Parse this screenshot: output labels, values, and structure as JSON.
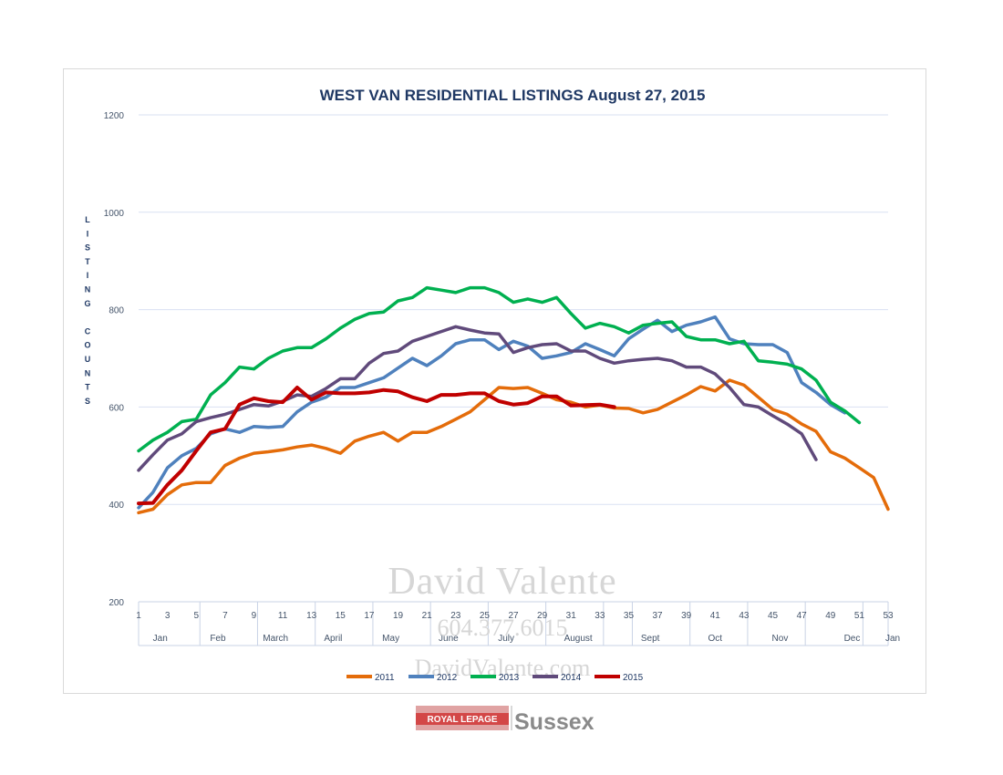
{
  "chart_data": {
    "type": "line",
    "title": "WEST VAN RESIDENTIAL LISTINGS August 27, 2015",
    "ylabel": "LISTING COUNTS",
    "ylim": [
      200,
      1200
    ],
    "yticks": [
      200,
      400,
      600,
      800,
      1000,
      1200
    ],
    "xlim": [
      1,
      53
    ],
    "xticks": [
      1,
      3,
      5,
      7,
      9,
      11,
      13,
      15,
      17,
      19,
      21,
      23,
      25,
      27,
      29,
      31,
      33,
      35,
      37,
      39,
      41,
      43,
      45,
      47,
      49,
      51,
      53
    ],
    "month_labels": [
      {
        "label": "Jan",
        "x": 2.5
      },
      {
        "label": "Feb",
        "x": 6.5
      },
      {
        "label": "March",
        "x": 10.5
      },
      {
        "label": "April",
        "x": 14.5
      },
      {
        "label": "May",
        "x": 18.5
      },
      {
        "label": "June",
        "x": 22.5
      },
      {
        "label": "July",
        "x": 26.5
      },
      {
        "label": "August",
        "x": 31.5
      },
      {
        "label": "Sept",
        "x": 36.5
      },
      {
        "label": "Oct",
        "x": 41
      },
      {
        "label": "Nov",
        "x": 45.5
      },
      {
        "label": "Dec",
        "x": 50.5
      },
      {
        "label": "Jan",
        "x": 53
      }
    ],
    "month_dividers": [
      5,
      9,
      13,
      17,
      21,
      25,
      29,
      33,
      35,
      39,
      43,
      47,
      51
    ],
    "grid": true,
    "legend": "bottom",
    "series": [
      {
        "name": "2011",
        "color": "#e46c0a",
        "values": [
          383,
          390,
          420,
          440,
          445,
          445,
          480,
          495,
          505,
          508,
          512,
          518,
          522,
          515,
          505,
          530,
          540,
          548,
          530,
          548,
          548,
          560,
          575,
          590,
          615,
          640,
          638,
          640,
          628,
          615,
          610,
          600,
          604,
          598,
          597,
          588,
          595,
          610,
          625,
          642,
          633,
          655,
          645,
          620,
          595,
          585,
          565,
          550,
          508,
          495,
          475,
          455,
          390
        ]
      },
      {
        "name": "2012",
        "color": "#4f81bd",
        "values": [
          393,
          425,
          475,
          500,
          515,
          545,
          555,
          548,
          560,
          558,
          560,
          590,
          610,
          620,
          640,
          640,
          650,
          660,
          680,
          700,
          685,
          705,
          730,
          738,
          738,
          718,
          735,
          725,
          700,
          705,
          712,
          730,
          718,
          705,
          740,
          760,
          778,
          755,
          768,
          775,
          785,
          740,
          730,
          728,
          728,
          712,
          650,
          630,
          605,
          588,
          null,
          null,
          null
        ]
      },
      {
        "name": "2013",
        "color": "#00b050",
        "values": [
          510,
          532,
          548,
          570,
          575,
          625,
          650,
          682,
          678,
          700,
          715,
          722,
          722,
          740,
          762,
          780,
          792,
          795,
          818,
          825,
          845,
          840,
          835,
          845,
          845,
          835,
          815,
          822,
          815,
          825,
          792,
          762,
          772,
          765,
          752,
          768,
          772,
          775,
          745,
          738,
          738,
          730,
          735,
          695,
          692,
          688,
          678,
          655,
          610,
          592,
          568,
          null,
          null
        ]
      },
      {
        "name": "2014",
        "color": "#604a7b",
        "values": [
          470,
          502,
          532,
          545,
          570,
          578,
          585,
          595,
          605,
          602,
          612,
          625,
          622,
          638,
          658,
          658,
          690,
          710,
          715,
          735,
          745,
          755,
          765,
          758,
          752,
          750,
          712,
          722,
          728,
          730,
          715,
          715,
          700,
          690,
          695,
          698,
          700,
          695,
          682,
          682,
          668,
          640,
          605,
          600,
          582,
          565,
          545,
          492,
          null,
          null,
          null,
          null,
          null
        ]
      },
      {
        "name": "2015",
        "color": "#c00000",
        "values": [
          402,
          403,
          440,
          470,
          510,
          548,
          555,
          605,
          618,
          612,
          610,
          640,
          615,
          630,
          628,
          628,
          630,
          635,
          632,
          620,
          612,
          625,
          625,
          628,
          628,
          612,
          605,
          608,
          622,
          622,
          603,
          604,
          605,
          600,
          null,
          null,
          null,
          null,
          null,
          null,
          null,
          null,
          null,
          null,
          null,
          null,
          null,
          null,
          null,
          null,
          null,
          null,
          null
        ]
      }
    ]
  },
  "watermark": {
    "name": "David Valente",
    "phone": "604.377.6015",
    "site": "DavidValente.com"
  },
  "logo": {
    "brand_line1": "ROYAL LEPAGE",
    "brand_line2": "Sussex"
  }
}
